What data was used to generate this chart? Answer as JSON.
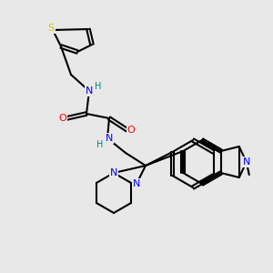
{
  "bg_color": "#e8e8e8",
  "bond_color": "#000000",
  "bond_width": 1.5,
  "atom_colors": {
    "N": "#0000ff",
    "O": "#ff0000",
    "S": "#cccc00",
    "H_label": "#008080",
    "C": "#000000",
    "CH3": "#000000"
  },
  "font_size": 7.5
}
